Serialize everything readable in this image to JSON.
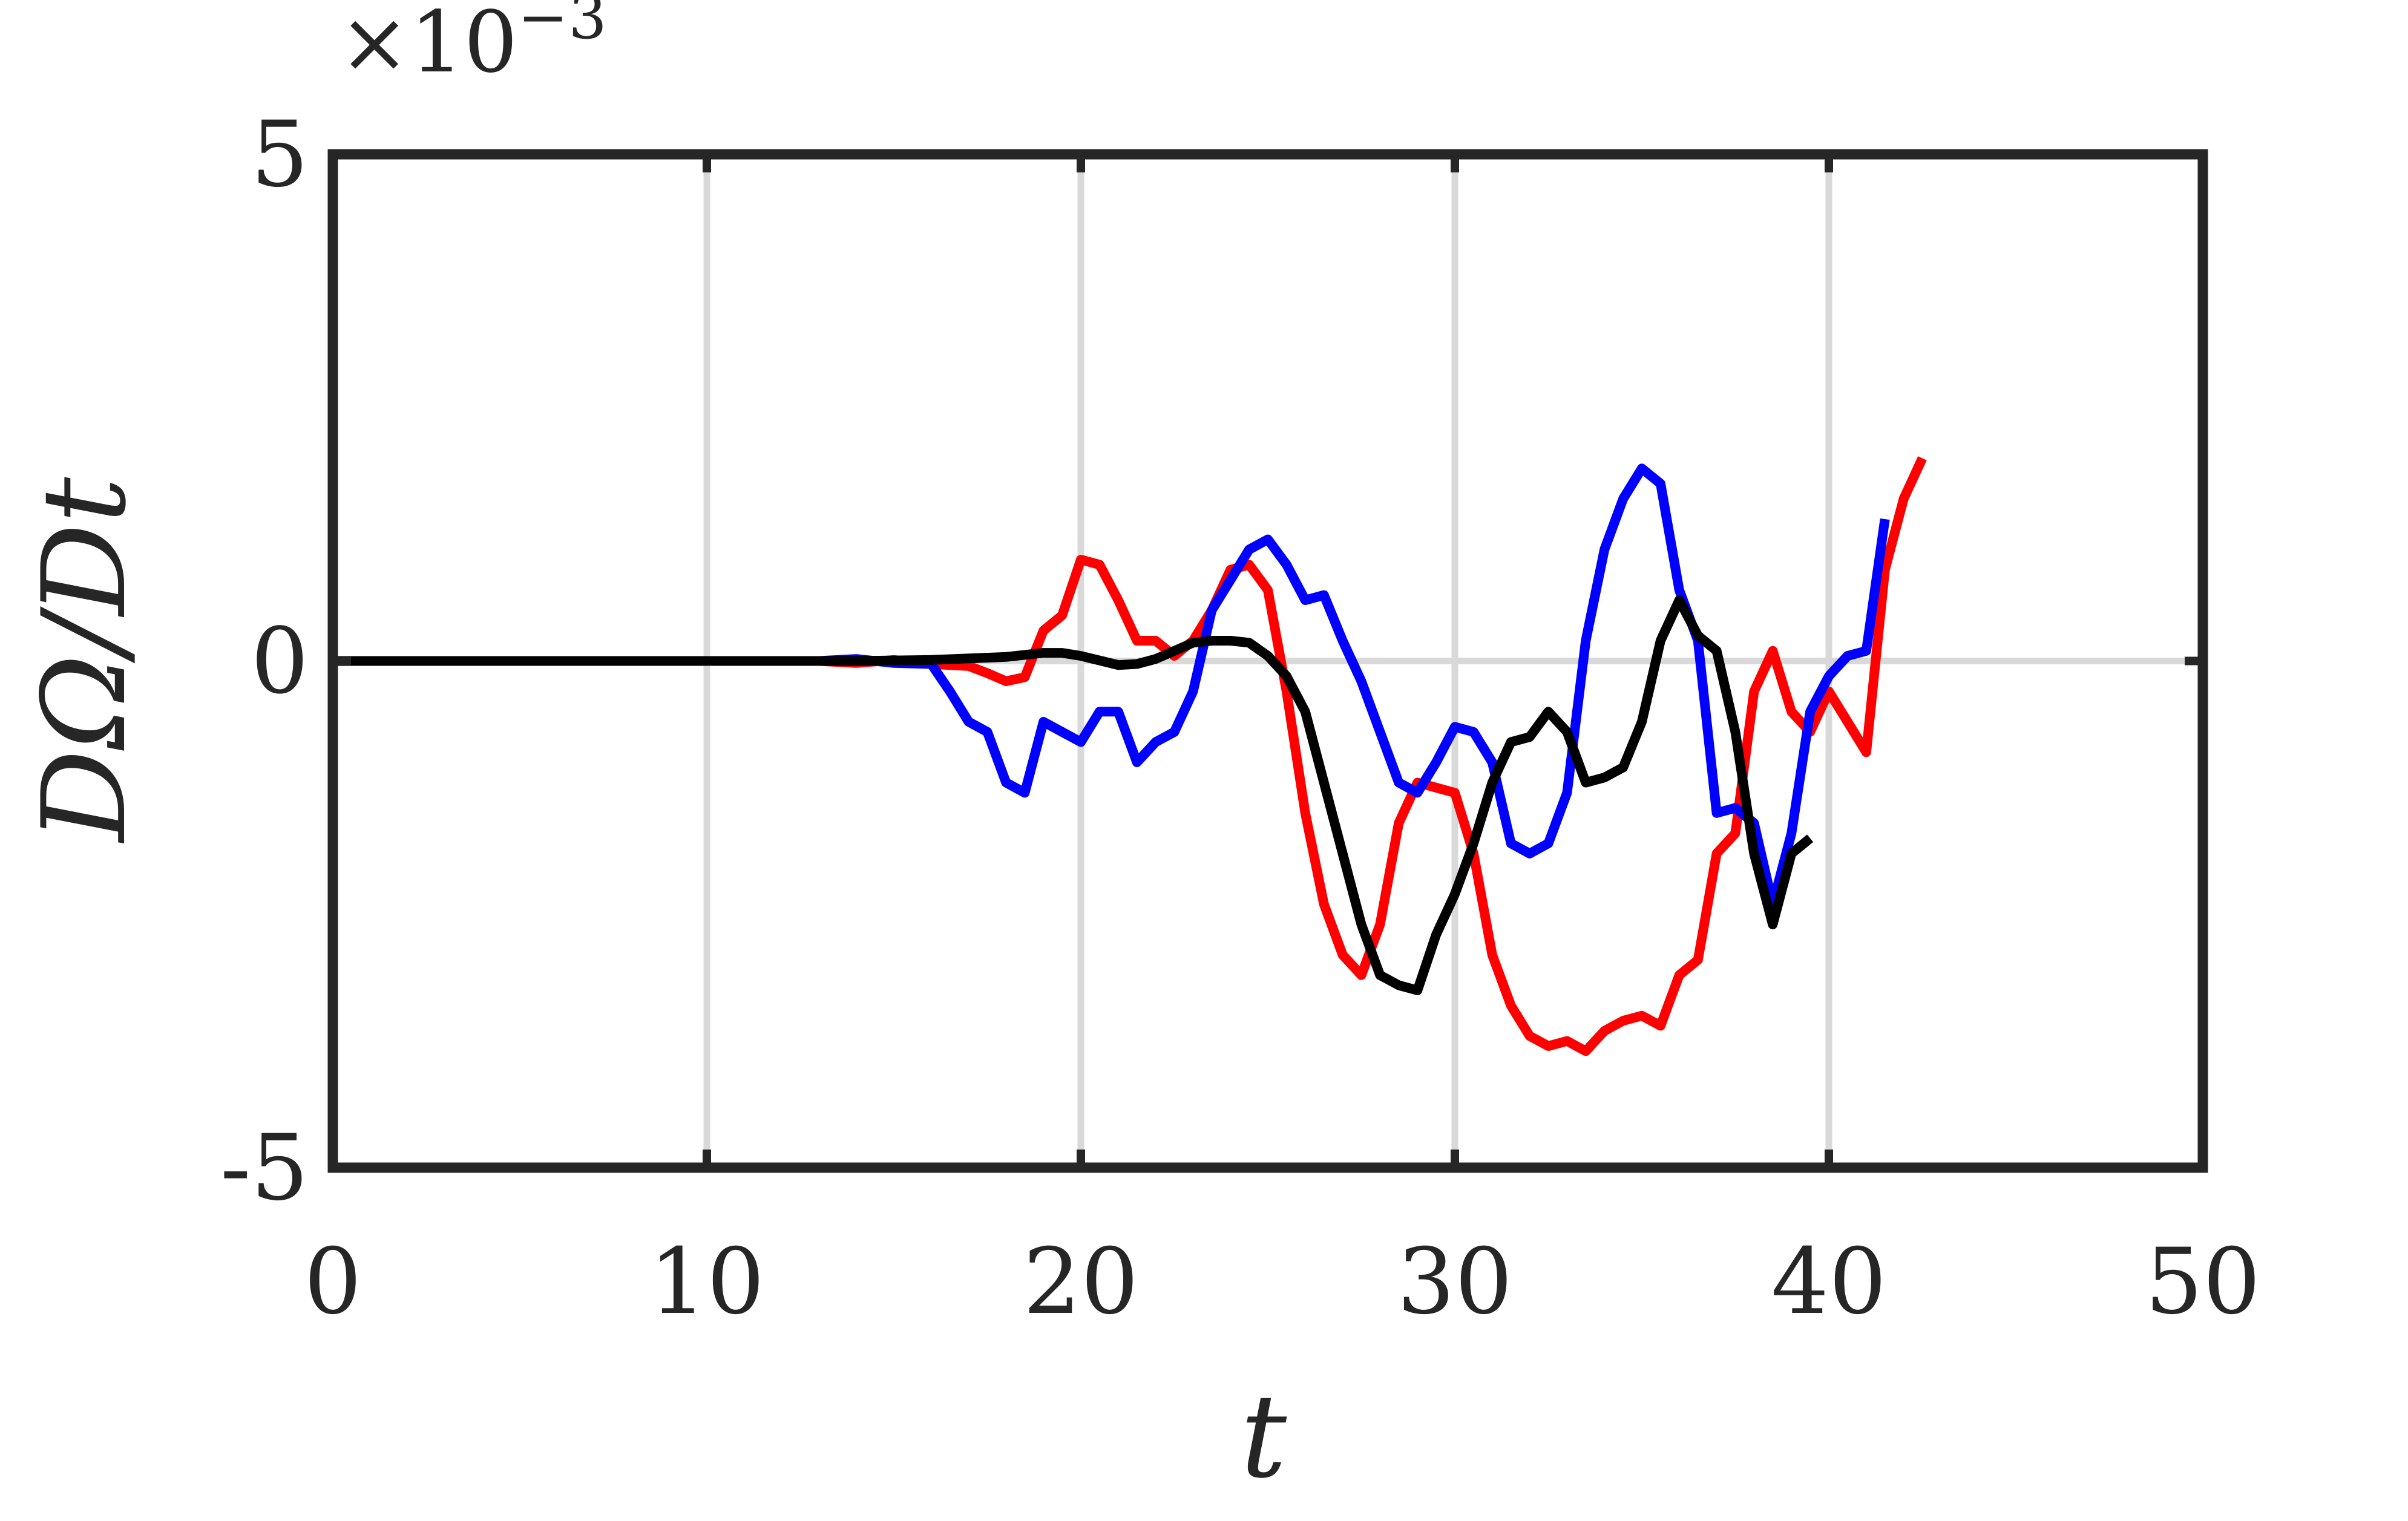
{
  "chart_data": {
    "type": "line",
    "title": "",
    "xlabel": "t",
    "ylabel": "DΩ/Dt",
    "exponent_label": "×10",
    "exponent_power": "−3",
    "xlim": [
      0,
      50
    ],
    "ylim": [
      -5,
      5
    ],
    "xticks": [
      0,
      10,
      20,
      30,
      40,
      50
    ],
    "xtick_labels": [
      "0",
      "10",
      "20",
      "30",
      "40",
      "50"
    ],
    "yticks": [
      -5,
      0,
      5
    ],
    "ytick_labels": [
      "-5",
      "0",
      "5"
    ],
    "grid": true,
    "legend": "none",
    "series": [
      {
        "color": "#ff0000",
        "points": [
          [
            0,
            0
          ],
          [
            10,
            0
          ],
          [
            12,
            0
          ],
          [
            13,
            0
          ],
          [
            14,
            -0.02
          ],
          [
            15,
            0.01
          ],
          [
            16,
            -0.03
          ],
          [
            17,
            -0.05
          ],
          [
            17.5,
            -0.12
          ],
          [
            18,
            -0.2
          ],
          [
            18.5,
            -0.16
          ],
          [
            19,
            0.3
          ],
          [
            19.5,
            0.45
          ],
          [
            20,
            1.0
          ],
          [
            20.5,
            0.95
          ],
          [
            21,
            0.6
          ],
          [
            21.5,
            0.2
          ],
          [
            22,
            0.2
          ],
          [
            22.5,
            0.05
          ],
          [
            23,
            0.2
          ],
          [
            23.5,
            0.5
          ],
          [
            24,
            0.9
          ],
          [
            24.5,
            0.95
          ],
          [
            25,
            0.7
          ],
          [
            25.5,
            -0.3
          ],
          [
            26,
            -1.5
          ],
          [
            26.5,
            -2.4
          ],
          [
            27,
            -2.9
          ],
          [
            27.5,
            -3.1
          ],
          [
            28,
            -2.6
          ],
          [
            28.5,
            -1.6
          ],
          [
            29,
            -1.2
          ],
          [
            29.5,
            -1.25
          ],
          [
            30,
            -1.3
          ],
          [
            30.5,
            -1.9
          ],
          [
            31,
            -2.9
          ],
          [
            31.5,
            -3.4
          ],
          [
            32,
            -3.7
          ],
          [
            32.5,
            -3.8
          ],
          [
            33,
            -3.75
          ],
          [
            33.5,
            -3.85
          ],
          [
            34,
            -3.65
          ],
          [
            34.5,
            -3.55
          ],
          [
            35,
            -3.5
          ],
          [
            35.5,
            -3.6
          ],
          [
            36,
            -3.1
          ],
          [
            36.5,
            -2.95
          ],
          [
            37,
            -1.9
          ],
          [
            37.5,
            -1.7
          ],
          [
            38,
            -0.3
          ],
          [
            38.5,
            0.1
          ],
          [
            39,
            -0.5
          ],
          [
            39.5,
            -0.7
          ],
          [
            40,
            -0.3
          ],
          [
            40.5,
            -0.6
          ],
          [
            41,
            -0.9
          ],
          [
            41.5,
            0.9
          ],
          [
            42,
            1.6
          ],
          [
            42.5,
            2.0
          ]
        ]
      },
      {
        "color": "#0000ff",
        "points": [
          [
            0,
            0
          ],
          [
            12,
            0
          ],
          [
            13,
            0
          ],
          [
            14,
            0.02
          ],
          [
            15,
            -0.02
          ],
          [
            16,
            -0.03
          ],
          [
            16.5,
            -0.3
          ],
          [
            17,
            -0.6
          ],
          [
            17.5,
            -0.7
          ],
          [
            18,
            -1.2
          ],
          [
            18.5,
            -1.3
          ],
          [
            19,
            -0.6
          ],
          [
            19.5,
            -0.7
          ],
          [
            20,
            -0.8
          ],
          [
            20.5,
            -0.5
          ],
          [
            21,
            -0.5
          ],
          [
            21.5,
            -1.0
          ],
          [
            22,
            -0.8
          ],
          [
            22.5,
            -0.7
          ],
          [
            23,
            -0.3
          ],
          [
            23.5,
            0.5
          ],
          [
            24,
            0.8
          ],
          [
            24.5,
            1.1
          ],
          [
            25,
            1.2
          ],
          [
            25.5,
            0.95
          ],
          [
            26,
            0.6
          ],
          [
            26.5,
            0.65
          ],
          [
            27,
            0.2
          ],
          [
            27.5,
            -0.2
          ],
          [
            28,
            -0.7
          ],
          [
            28.5,
            -1.2
          ],
          [
            29,
            -1.3
          ],
          [
            29.5,
            -1.0
          ],
          [
            30,
            -0.65
          ],
          [
            30.5,
            -0.7
          ],
          [
            31,
            -1.0
          ],
          [
            31.5,
            -1.8
          ],
          [
            32,
            -1.9
          ],
          [
            32.5,
            -1.8
          ],
          [
            33,
            -1.3
          ],
          [
            33.5,
            0.2
          ],
          [
            34,
            1.1
          ],
          [
            34.5,
            1.6
          ],
          [
            35,
            1.9
          ],
          [
            35.5,
            1.75
          ],
          [
            36,
            0.7
          ],
          [
            36.5,
            0.2
          ],
          [
            37,
            -1.5
          ],
          [
            37.5,
            -1.45
          ],
          [
            38,
            -1.6
          ],
          [
            38.5,
            -2.4
          ],
          [
            39,
            -1.7
          ],
          [
            39.5,
            -0.5
          ],
          [
            40,
            -0.15
          ],
          [
            40.5,
            0.05
          ],
          [
            41,
            0.1
          ],
          [
            41.5,
            1.4
          ]
        ]
      },
      {
        "color": "#000000",
        "points": [
          [
            0,
            0
          ],
          [
            12,
            0
          ],
          [
            14,
            0
          ],
          [
            16,
            0.01
          ],
          [
            18,
            0.04
          ],
          [
            19,
            0.08
          ],
          [
            19.5,
            0.08
          ],
          [
            20,
            0.05
          ],
          [
            21,
            -0.04
          ],
          [
            21.5,
            -0.03
          ],
          [
            22,
            0.02
          ],
          [
            22.5,
            0.1
          ],
          [
            23,
            0.18
          ],
          [
            23.5,
            0.2
          ],
          [
            24,
            0.2
          ],
          [
            24.5,
            0.18
          ],
          [
            25,
            0.05
          ],
          [
            25.5,
            -0.15
          ],
          [
            26,
            -0.5
          ],
          [
            26.5,
            -1.2
          ],
          [
            27,
            -1.9
          ],
          [
            27.5,
            -2.6
          ],
          [
            28,
            -3.1
          ],
          [
            28.5,
            -3.2
          ],
          [
            29,
            -3.25
          ],
          [
            29.5,
            -2.7
          ],
          [
            30,
            -2.3
          ],
          [
            30.5,
            -1.8
          ],
          [
            31,
            -1.2
          ],
          [
            31.5,
            -0.8
          ],
          [
            32,
            -0.75
          ],
          [
            32.5,
            -0.5
          ],
          [
            33,
            -0.7
          ],
          [
            33.5,
            -1.2
          ],
          [
            34,
            -1.15
          ],
          [
            34.5,
            -1.05
          ],
          [
            35,
            -0.6
          ],
          [
            35.5,
            0.2
          ],
          [
            36,
            0.6
          ],
          [
            36.5,
            0.25
          ],
          [
            37,
            0.1
          ],
          [
            37.5,
            -0.7
          ],
          [
            38,
            -1.9
          ],
          [
            38.5,
            -2.6
          ],
          [
            39,
            -1.9
          ],
          [
            39.5,
            -1.75
          ]
        ]
      }
    ]
  }
}
